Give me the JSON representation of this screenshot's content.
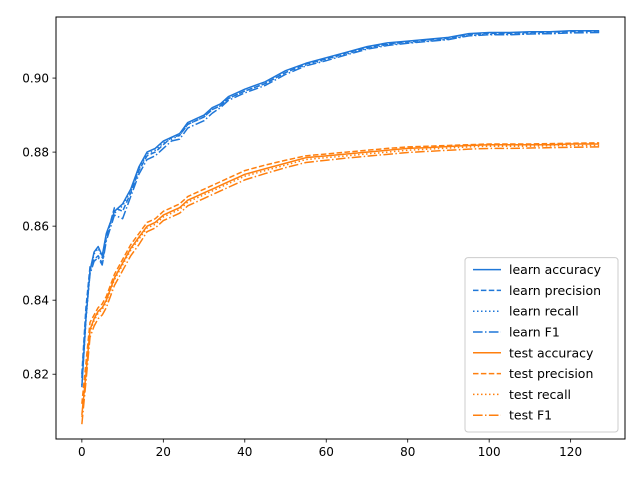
{
  "chart_data": {
    "type": "line",
    "title": "",
    "xlabel": "",
    "ylabel": "",
    "xlim": [
      -6.35,
      133.35
    ],
    "ylim": [
      0.8025,
      0.9165
    ],
    "xticks": [
      0,
      20,
      40,
      60,
      80,
      100,
      120
    ],
    "xtick_labels": [
      "0",
      "20",
      "40",
      "60",
      "80",
      "100",
      "120"
    ],
    "yticks": [
      0.82,
      0.84,
      0.86,
      0.88,
      0.9
    ],
    "ytick_labels": [
      "0.82",
      "0.84",
      "0.86",
      "0.88",
      "0.90"
    ],
    "grid": false,
    "legend_position": "lower right",
    "x": [
      0,
      1,
      2,
      3,
      4,
      5,
      6,
      8,
      10,
      12,
      14,
      16,
      18,
      20,
      22,
      24,
      26,
      28,
      30,
      32,
      34,
      36,
      38,
      40,
      45,
      50,
      55,
      60,
      65,
      70,
      75,
      80,
      85,
      90,
      95,
      100,
      105,
      110,
      115,
      120,
      127
    ],
    "series": [
      {
        "name": "learn accuracy",
        "color": "#1f77d8",
        "dash": "solid",
        "values": [
          0.8165,
          0.835,
          0.848,
          0.853,
          0.8545,
          0.852,
          0.858,
          0.864,
          0.866,
          0.87,
          0.876,
          0.88,
          0.881,
          0.883,
          0.884,
          0.885,
          0.888,
          0.889,
          0.89,
          0.892,
          0.893,
          0.895,
          0.896,
          0.897,
          0.899,
          0.902,
          0.904,
          0.9055,
          0.907,
          0.9085,
          0.9095,
          0.91,
          0.9105,
          0.911,
          0.912,
          0.9123,
          0.9123,
          0.9125,
          0.9125,
          0.9128,
          0.9128
        ]
      },
      {
        "name": "learn precision",
        "color": "#1f77d8",
        "dash": "dashed",
        "values": [
          0.82,
          0.838,
          0.849,
          0.851,
          0.852,
          0.85,
          0.857,
          0.865,
          0.864,
          0.869,
          0.875,
          0.879,
          0.88,
          0.882,
          0.884,
          0.8845,
          0.8875,
          0.8885,
          0.8895,
          0.8915,
          0.8925,
          0.8945,
          0.8955,
          0.8965,
          0.8985,
          0.9015,
          0.9038,
          0.9052,
          0.9068,
          0.9082,
          0.9092,
          0.9098,
          0.9103,
          0.9108,
          0.9118,
          0.9121,
          0.9121,
          0.9123,
          0.9124,
          0.9126,
          0.9127
        ]
      },
      {
        "name": "learn recall",
        "color": "#1f77d8",
        "dash": "dotted",
        "values": [
          0.817,
          0.8345,
          0.8475,
          0.8525,
          0.854,
          0.8515,
          0.8575,
          0.8635,
          0.8655,
          0.8695,
          0.8755,
          0.8795,
          0.8805,
          0.8825,
          0.8835,
          0.8845,
          0.8875,
          0.8885,
          0.8895,
          0.8915,
          0.8925,
          0.8945,
          0.8955,
          0.8965,
          0.8985,
          0.9015,
          0.9035,
          0.905,
          0.9065,
          0.908,
          0.909,
          0.9095,
          0.91,
          0.9105,
          0.9115,
          0.9118,
          0.9118,
          0.912,
          0.912,
          0.9123,
          0.9124
        ]
      },
      {
        "name": "learn F1",
        "color": "#1f77d8",
        "dash": "dashdot",
        "values": [
          0.819,
          0.836,
          0.847,
          0.8505,
          0.8515,
          0.8495,
          0.856,
          0.863,
          0.862,
          0.868,
          0.874,
          0.878,
          0.879,
          0.881,
          0.883,
          0.8835,
          0.8865,
          0.8875,
          0.8885,
          0.8905,
          0.892,
          0.894,
          0.895,
          0.896,
          0.898,
          0.901,
          0.9033,
          0.9047,
          0.9063,
          0.9078,
          0.9088,
          0.9094,
          0.9099,
          0.9104,
          0.9114,
          0.9117,
          0.9117,
          0.9119,
          0.912,
          0.9122,
          0.9123
        ]
      },
      {
        "name": "test accuracy",
        "color": "#ff7f0e",
        "dash": "solid",
        "values": [
          0.809,
          0.82,
          0.832,
          0.835,
          0.837,
          0.838,
          0.84,
          0.846,
          0.85,
          0.854,
          0.857,
          0.86,
          0.861,
          0.863,
          0.864,
          0.865,
          0.867,
          0.868,
          0.869,
          0.87,
          0.871,
          0.872,
          0.873,
          0.874,
          0.8755,
          0.877,
          0.8785,
          0.879,
          0.8795,
          0.88,
          0.8805,
          0.881,
          0.8812,
          0.8815,
          0.8818,
          0.882,
          0.882,
          0.882,
          0.882,
          0.8822,
          0.8822
        ]
      },
      {
        "name": "test precision",
        "color": "#ff7f0e",
        "dash": "dashed",
        "values": [
          0.812,
          0.823,
          0.834,
          0.836,
          0.838,
          0.839,
          0.841,
          0.847,
          0.851,
          0.855,
          0.858,
          0.861,
          0.862,
          0.864,
          0.865,
          0.866,
          0.868,
          0.869,
          0.87,
          0.871,
          0.872,
          0.873,
          0.874,
          0.875,
          0.8765,
          0.8778,
          0.879,
          0.8795,
          0.88,
          0.8805,
          0.881,
          0.8814,
          0.8816,
          0.8818,
          0.882,
          0.8822,
          0.8822,
          0.8822,
          0.8823,
          0.8824,
          0.8825
        ]
      },
      {
        "name": "test recall",
        "color": "#ff7f0e",
        "dash": "dotted",
        "values": [
          0.8085,
          0.8195,
          0.8315,
          0.8345,
          0.8365,
          0.8375,
          0.8395,
          0.8455,
          0.8495,
          0.8535,
          0.8565,
          0.8595,
          0.8605,
          0.8625,
          0.8635,
          0.8645,
          0.8665,
          0.8675,
          0.8685,
          0.8695,
          0.8705,
          0.8715,
          0.8725,
          0.8735,
          0.875,
          0.8765,
          0.878,
          0.8785,
          0.879,
          0.8795,
          0.88,
          0.8805,
          0.8808,
          0.8811,
          0.8814,
          0.8816,
          0.8816,
          0.8816,
          0.8817,
          0.8818,
          0.8818
        ]
      },
      {
        "name": "test F1",
        "color": "#ff7f0e",
        "dash": "dashdot",
        "values": [
          0.8065,
          0.818,
          0.83,
          0.833,
          0.835,
          0.836,
          0.838,
          0.844,
          0.848,
          0.852,
          0.855,
          0.8585,
          0.8595,
          0.8615,
          0.8625,
          0.8635,
          0.8655,
          0.8665,
          0.8675,
          0.8685,
          0.8695,
          0.8705,
          0.8715,
          0.8725,
          0.8742,
          0.8758,
          0.8772,
          0.8778,
          0.8784,
          0.8789,
          0.8794,
          0.8799,
          0.8802,
          0.8805,
          0.8808,
          0.881,
          0.881,
          0.8811,
          0.8812,
          0.8813,
          0.8814
        ]
      }
    ]
  }
}
